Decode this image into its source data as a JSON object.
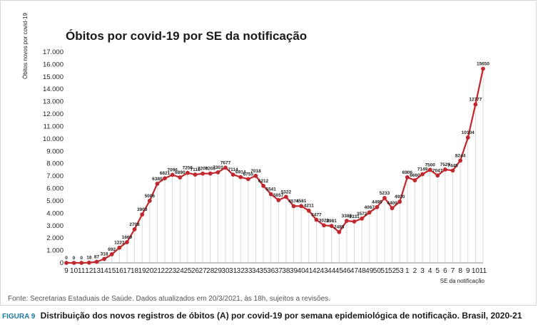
{
  "figure": {
    "label": "FIGURA 9",
    "caption": "Distribuição dos novos registros de óbitos (A) por covid-19 por semana epidemiológica de notificação. Brasil, 2020-21",
    "source": "Fonte: Secretarias Estaduais de Saúde. Dados atualizados em 20/3/2021, às 18h, sujeitos a revisões."
  },
  "chart_data": {
    "type": "line",
    "title": "Óbitos por covid-19 por SE da notificação",
    "xlabel": "SE da notificação",
    "ylabel": "Óbitos novos por covid-19",
    "ylim": [
      0,
      17000
    ],
    "yticks": [
      "0",
      "1.000",
      "2.000",
      "3.000",
      "4.000",
      "5.000",
      "6.000",
      "7.000",
      "8.000",
      "9.000",
      "10.000",
      "11.000",
      "12.000",
      "13.000",
      "14.000",
      "15.000",
      "16.000",
      "17.000"
    ],
    "grid": "vertical",
    "categories": [
      "9",
      "10",
      "11",
      "12",
      "13",
      "14",
      "15",
      "16",
      "17",
      "18",
      "19",
      "20",
      "21",
      "22",
      "23",
      "24",
      "25",
      "26",
      "27",
      "28",
      "29",
      "30",
      "31",
      "32",
      "33",
      "34",
      "35",
      "36",
      "37",
      "38",
      "39",
      "40",
      "41",
      "42",
      "43",
      "44",
      "45",
      "46",
      "47",
      "48",
      "49",
      "50",
      "51",
      "52",
      "53",
      "1",
      "2",
      "3",
      "4",
      "5",
      "6",
      "7",
      "8",
      "9",
      "10",
      "11"
    ],
    "series": [
      {
        "color": "#c0282d",
        "values": [
          0,
          0,
          0,
          18,
          87,
          318,
          692,
          1223,
          1669,
          2708,
          3903,
          5006,
          6380,
          6821,
          7096,
          6890,
          7256,
          7118,
          7200,
          7203,
          7303,
          7677,
          7114,
          6914,
          6755,
          7018,
          6212,
          5541,
          5057,
          5322,
          4574,
          4581,
          4211,
          3477,
          3028,
          2981,
          2485,
          3388,
          3331,
          3572,
          4067,
          4495,
          5233,
          4409,
          4930,
          6906,
          6660,
          7149,
          7500,
          7047,
          7529,
          7445,
          8244,
          10104,
          12777,
          15650
        ],
        "labels": [
          "0",
          "0",
          "0",
          "18",
          "87",
          "318",
          "692",
          "1223",
          "1669",
          "2708",
          "3903",
          "5006",
          "6380",
          "6821",
          "7096",
          "6890",
          "7256",
          "7118",
          "7200",
          "7203",
          "7303",
          "7677",
          "7114",
          "6914",
          "6755",
          "7018",
          "6212",
          "5541",
          "5057",
          "5322",
          "4574",
          "4581",
          "4211",
          "3477",
          "3028",
          "2981",
          "2485",
          "3388",
          "3331",
          "3572",
          "4067",
          "4495",
          "5233",
          "4409",
          "4930",
          "6906",
          "6660",
          "7149",
          "7500",
          "7047",
          "7529",
          "7445",
          "8244",
          "10104",
          "12777",
          "15650"
        ]
      }
    ]
  }
}
